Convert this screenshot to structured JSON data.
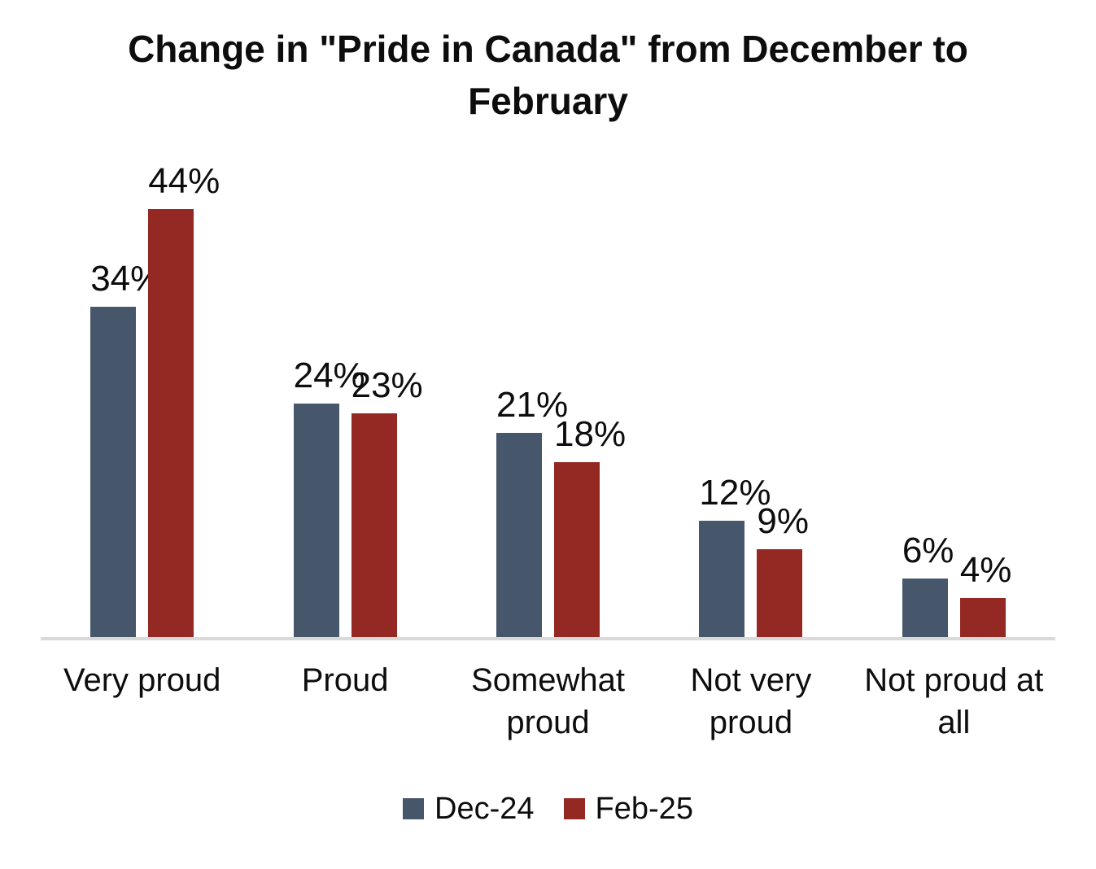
{
  "header": {
    "title_lines": [
      "Change in \"Pride in Canada\" from December to",
      "February"
    ]
  },
  "chart_data": {
    "type": "bar",
    "title": "Change in \"Pride in Canada\" from December to February",
    "categories": [
      "Very proud",
      "Proud",
      "Somewhat proud",
      "Not very proud",
      "Not proud at all"
    ],
    "series": [
      {
        "name": "Dec-24",
        "color": "#46566B",
        "values": [
          34,
          24,
          21,
          12,
          6
        ]
      },
      {
        "name": "Feb-25",
        "color": "#942823",
        "values": [
          44,
          23,
          18,
          9,
          4
        ]
      }
    ],
    "value_suffix": "%",
    "data_labels": "outside-end",
    "legend_position": "bottom",
    "grid": false,
    "y_axis_visible": false,
    "ylim": [
      0,
      50
    ],
    "axis_line_color": "#D9D9D9",
    "background": "#FFFFFF",
    "text_color": "#0D0D0D"
  }
}
